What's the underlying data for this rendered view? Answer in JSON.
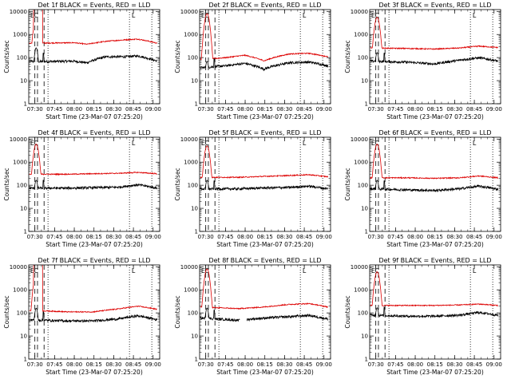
{
  "chart_data": [
    {
      "title": "Det 1f BLACK = Events, RED = LLD",
      "type": "line",
      "xlabel": "Start Time (23-Mar-07 07:25:20)",
      "ylabel": "Counts/sec",
      "events_base": 70,
      "lld_base": 420,
      "peak_events": 250,
      "peak_lld": 5000,
      "lld_flat_top": true,
      "gap": false,
      "events_drift": [
        [
          0,
          1.0
        ],
        [
          0.05,
          0.95
        ],
        [
          0.35,
          1.0
        ],
        [
          0.45,
          0.85
        ],
        [
          0.6,
          1.55
        ],
        [
          0.75,
          1.55
        ],
        [
          0.85,
          1.7
        ],
        [
          1,
          1.0
        ]
      ],
      "lld_drift": [
        [
          0,
          1.0
        ],
        [
          0.05,
          1.0
        ],
        [
          0.35,
          1.05
        ],
        [
          0.45,
          0.9
        ],
        [
          0.6,
          1.2
        ],
        [
          0.75,
          1.4
        ],
        [
          0.85,
          1.5
        ],
        [
          1,
          1.0
        ]
      ]
    },
    {
      "title": "Det 2f BLACK = Events, RED = LLD",
      "type": "line",
      "xlabel": "Start Time (23-Mar-07 07:25:20)",
      "ylabel": "Counts/sec",
      "events_base": 40,
      "lld_base": 90,
      "peak_events": 60,
      "peak_lld": 8000,
      "lld_flat_top": false,
      "gap": false,
      "events_drift": [
        [
          0,
          0.9
        ],
        [
          0.2,
          1.1
        ],
        [
          0.35,
          1.4
        ],
        [
          0.5,
          0.8
        ],
        [
          0.7,
          1.5
        ],
        [
          0.85,
          1.6
        ],
        [
          1,
          1.1
        ]
      ],
      "lld_drift": [
        [
          0,
          0.9
        ],
        [
          0.2,
          1.1
        ],
        [
          0.35,
          1.4
        ],
        [
          0.5,
          0.8
        ],
        [
          0.7,
          1.6
        ],
        [
          0.85,
          1.7
        ],
        [
          1,
          1.2
        ]
      ]
    },
    {
      "title": "Det 3f BLACK = Events, RED = LLD",
      "type": "line",
      "xlabel": "Start Time (23-Mar-07 07:25:20)",
      "ylabel": "Counts/sec",
      "events_base": 70,
      "lld_base": 260,
      "peak_events": 150,
      "peak_lld": 5500,
      "lld_flat_top": false,
      "gap": false,
      "events_drift": [
        [
          0,
          1.0
        ],
        [
          0.3,
          0.9
        ],
        [
          0.5,
          0.75
        ],
        [
          0.7,
          1.1
        ],
        [
          0.85,
          1.4
        ],
        [
          1,
          1.0
        ]
      ],
      "lld_drift": [
        [
          0,
          1.0
        ],
        [
          0.3,
          0.95
        ],
        [
          0.5,
          0.9
        ],
        [
          0.7,
          1.0
        ],
        [
          0.85,
          1.2
        ],
        [
          1,
          1.05
        ]
      ]
    },
    {
      "title": "Det 4f BLACK = Events, RED = LLD",
      "type": "line",
      "xlabel": "Start Time (23-Mar-07 07:25:20)",
      "ylabel": "Counts/sec",
      "events_base": 75,
      "lld_base": 300,
      "peak_events": 150,
      "peak_lld": 6000,
      "lld_flat_top": false,
      "gap": false,
      "events_drift": [
        [
          0,
          1.0
        ],
        [
          0.3,
          1.0
        ],
        [
          0.5,
          1.05
        ],
        [
          0.7,
          1.1
        ],
        [
          0.85,
          1.4
        ],
        [
          1,
          1.0
        ]
      ],
      "lld_drift": [
        [
          0,
          1.0
        ],
        [
          0.3,
          1.0
        ],
        [
          0.5,
          1.05
        ],
        [
          0.7,
          1.1
        ],
        [
          0.85,
          1.2
        ],
        [
          1,
          1.05
        ]
      ]
    },
    {
      "title": "Det 5f BLACK = Events, RED = LLD",
      "type": "line",
      "xlabel": "Start Time (23-Mar-07 07:25:20)",
      "ylabel": "Counts/sec",
      "events_base": 70,
      "lld_base": 220,
      "peak_events": 150,
      "peak_lld": 5000,
      "lld_flat_top": false,
      "gap": false,
      "events_drift": [
        [
          0,
          1.0
        ],
        [
          0.3,
          1.0
        ],
        [
          0.5,
          1.1
        ],
        [
          0.7,
          1.15
        ],
        [
          0.85,
          1.3
        ],
        [
          1,
          1.0
        ]
      ],
      "lld_drift": [
        [
          0,
          1.0
        ],
        [
          0.3,
          1.0
        ],
        [
          0.5,
          1.1
        ],
        [
          0.7,
          1.2
        ],
        [
          0.85,
          1.3
        ],
        [
          1,
          1.05
        ]
      ]
    },
    {
      "title": "Det 6f BLACK = Events, RED = LLD",
      "type": "line",
      "xlabel": "Start Time (23-Mar-07 07:25:20)",
      "ylabel": "Counts/sec",
      "events_base": 70,
      "lld_base": 210,
      "peak_events": 150,
      "peak_lld": 6000,
      "lld_flat_top": false,
      "gap": false,
      "events_drift": [
        [
          0,
          1.0
        ],
        [
          0.3,
          0.9
        ],
        [
          0.5,
          0.85
        ],
        [
          0.7,
          1.0
        ],
        [
          0.85,
          1.3
        ],
        [
          1,
          0.95
        ]
      ],
      "lld_drift": [
        [
          0,
          1.0
        ],
        [
          0.3,
          1.0
        ],
        [
          0.5,
          0.95
        ],
        [
          0.7,
          1.0
        ],
        [
          0.85,
          1.2
        ],
        [
          1,
          1.0
        ]
      ]
    },
    {
      "title": "Det 7f BLACK = Events, RED = LLD",
      "type": "line",
      "xlabel": "Start Time (23-Mar-07 07:25:20)",
      "ylabel": "Counts/sec",
      "events_base": 50,
      "lld_base": 130,
      "peak_events": 150,
      "peak_lld": 5000,
      "lld_flat_top": true,
      "gap": false,
      "events_drift": [
        [
          0,
          1.0
        ],
        [
          0.3,
          0.9
        ],
        [
          0.5,
          0.9
        ],
        [
          0.7,
          1.1
        ],
        [
          0.85,
          1.5
        ],
        [
          1,
          1.0
        ]
      ],
      "lld_drift": [
        [
          0,
          1.0
        ],
        [
          0.3,
          0.85
        ],
        [
          0.5,
          0.85
        ],
        [
          0.7,
          1.15
        ],
        [
          0.85,
          1.5
        ],
        [
          1,
          1.1
        ]
      ]
    },
    {
      "title": "Det 8f BLACK = Events, RED = LLD",
      "type": "line",
      "xlabel": "Start Time (23-Mar-07 07:25:20)",
      "ylabel": "Counts/sec",
      "events_base": 60,
      "lld_base": 180,
      "peak_events": 150,
      "peak_lld": 8000,
      "lld_flat_top": false,
      "gap": true,
      "events_drift": [
        [
          0,
          1.0
        ],
        [
          0.3,
          0.8
        ],
        [
          0.5,
          1.0
        ],
        [
          0.7,
          1.15
        ],
        [
          0.85,
          1.3
        ],
        [
          1,
          0.9
        ]
      ],
      "lld_drift": [
        [
          0,
          1.0
        ],
        [
          0.3,
          0.85
        ],
        [
          0.5,
          1.0
        ],
        [
          0.7,
          1.3
        ],
        [
          0.85,
          1.4
        ],
        [
          1,
          1.0
        ]
      ]
    },
    {
      "title": "Det 9f BLACK = Events, RED = LLD",
      "type": "line",
      "xlabel": "Start Time (23-Mar-07 07:25:20)",
      "ylabel": "Counts/sec",
      "events_base": 80,
      "lld_base": 210,
      "peak_events": 150,
      "peak_lld": 6000,
      "lld_flat_top": false,
      "gap": false,
      "events_drift": [
        [
          0,
          1.0
        ],
        [
          0.3,
          0.9
        ],
        [
          0.5,
          0.9
        ],
        [
          0.7,
          1.0
        ],
        [
          0.85,
          1.3
        ],
        [
          1,
          1.0
        ]
      ],
      "lld_drift": [
        [
          0,
          1.0
        ],
        [
          0.3,
          1.0
        ],
        [
          0.5,
          1.0
        ],
        [
          0.7,
          1.05
        ],
        [
          0.85,
          1.15
        ],
        [
          1,
          1.0
        ]
      ]
    }
  ],
  "axes": {
    "xlim": [
      "07:25:20",
      "09:05:00"
    ],
    "xticks": [
      "07:30",
      "07:45",
      "08:00",
      "08:15",
      "08:30",
      "08:45",
      "09:00"
    ],
    "ylim": [
      1,
      12000
    ],
    "yscale": "log",
    "yticks": [
      "1",
      "10",
      "100",
      "1000",
      "10000"
    ],
    "dashed_markers": [
      "07:30",
      "07:32",
      "07:37"
    ],
    "dotted_markers": [
      "07:40",
      "08:42",
      "08:59"
    ],
    "region_labels": {
      "E": "07:28",
      "C": "07:31",
      "L": "08:45"
    }
  },
  "colors": {
    "events": "#000000",
    "lld": "#dd0000"
  }
}
